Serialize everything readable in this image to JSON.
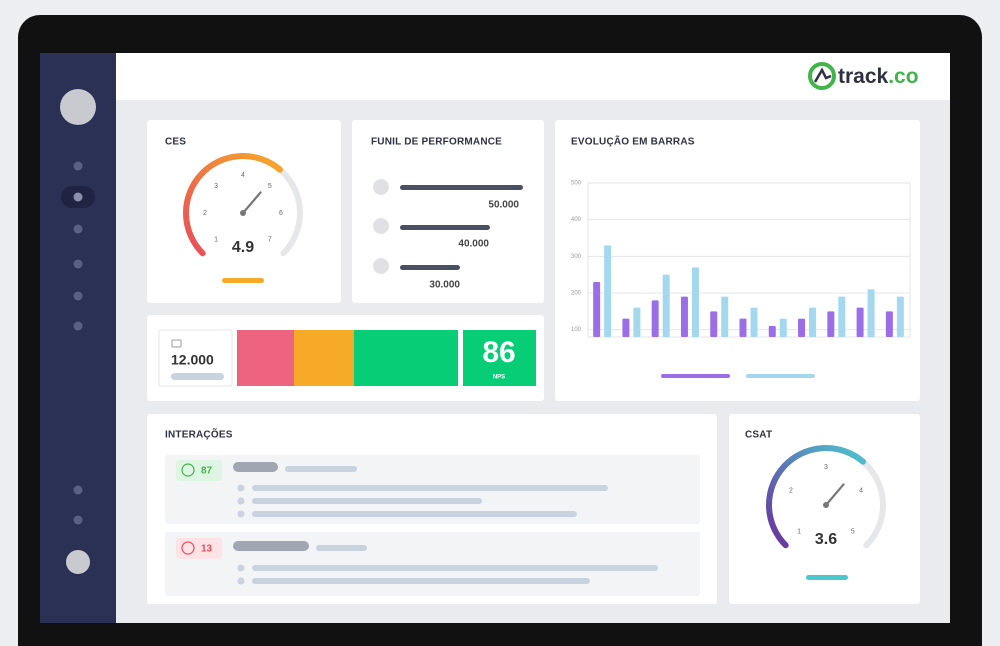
{
  "header": {
    "logo": {
      "brand": "track",
      "suffix": ".co"
    }
  },
  "ces": {
    "title": "CES",
    "value": 4.9,
    "range": [
      1,
      7
    ],
    "ticks": [
      1,
      2,
      3,
      4,
      5,
      6,
      7
    ]
  },
  "funnel": {
    "title": "FUNIL DE PERFORMANCE",
    "values": [
      "50.000",
      "40.000",
      "30.000"
    ]
  },
  "nps": {
    "responses": "12.000",
    "score": 86,
    "label": "NPS"
  },
  "bar_chart": {
    "type": "bar",
    "title": "EVOLUÇÃO EM BARRAS",
    "ylim": [
      80,
      500
    ],
    "yticks": [
      100,
      200,
      300,
      400,
      500
    ],
    "grid": true,
    "series": [
      {
        "color": "#9b6ee8",
        "values": [
          230,
          130,
          180,
          190,
          150,
          130,
          110,
          130,
          150,
          160,
          150
        ]
      },
      {
        "color": "#a3d8ef",
        "values": [
          330,
          160,
          250,
          270,
          190,
          160,
          130,
          160,
          190,
          210,
          190
        ]
      }
    ]
  },
  "interactions": {
    "title": "INTERAÇÕES",
    "rows": [
      {
        "count": 87
      },
      {
        "count": 13
      }
    ]
  },
  "csat": {
    "title": "CSAT",
    "value": 3.6,
    "range": [
      1,
      5
    ],
    "ticks": [
      1,
      2,
      3,
      4,
      5
    ]
  }
}
